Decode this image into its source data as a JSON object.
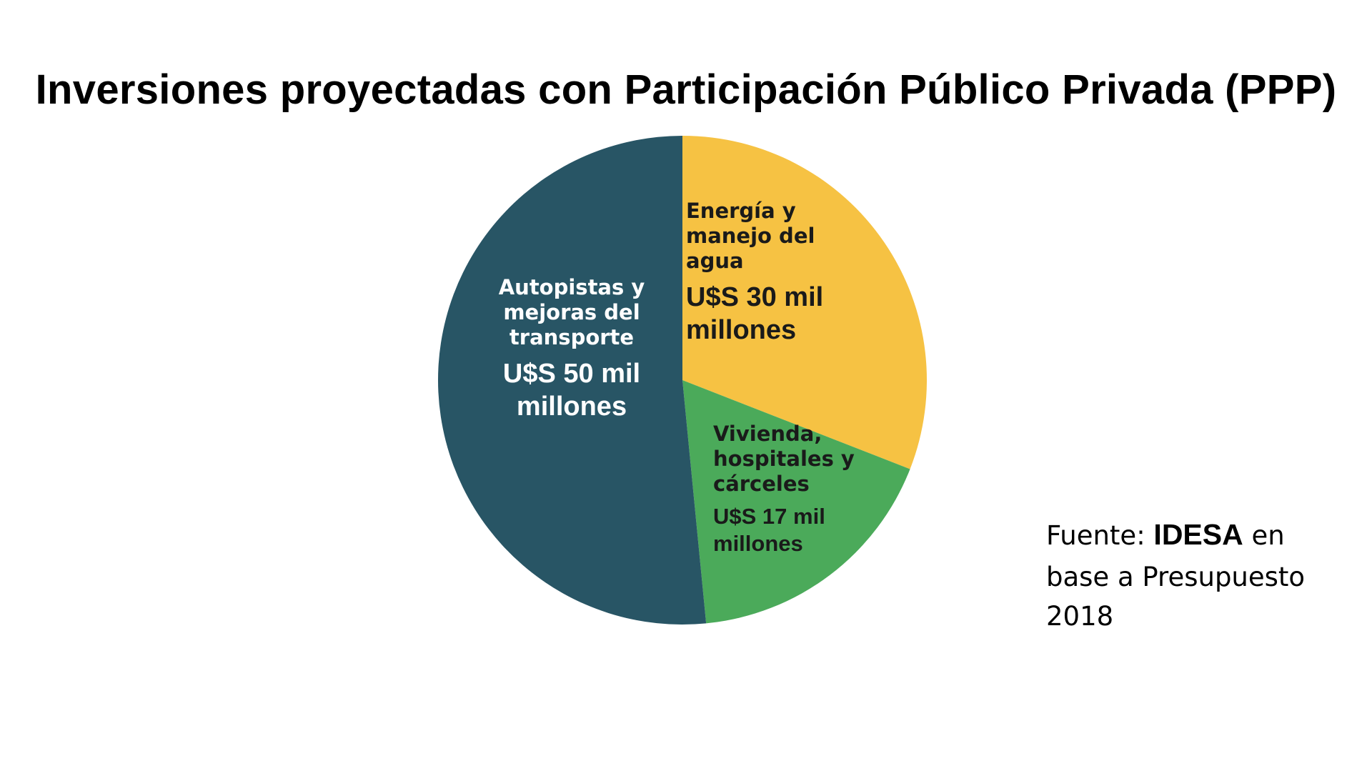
{
  "chart_data": {
    "type": "pie",
    "title": "Inversiones proyectadas con Participación Público Privada (PPP)",
    "unit": "U$S mil millones",
    "slices": [
      {
        "label": "Energía y\nmanejo del\nagua",
        "value": 30,
        "value_label": "U$S 30 mil\nmillones",
        "color": "#F6C243"
      },
      {
        "label": "Vivienda,\nhospitales y\ncárceles",
        "value": 17,
        "value_label": "U$S 17 mil\nmillones",
        "color": "#4BAA5A"
      },
      {
        "label": "Autopistas y\nmejoras del\ntransporte",
        "value": 50,
        "value_label": "U$S 50 mil\nmillones",
        "color": "#285565"
      }
    ],
    "start_angle": "12 o'clock",
    "direction": "clockwise",
    "legend": "none"
  },
  "source": {
    "prefix": "Fuente: ",
    "name": "IDESA",
    "suffix": " en",
    "line2": "base a Presupuesto",
    "line3": "2018"
  }
}
